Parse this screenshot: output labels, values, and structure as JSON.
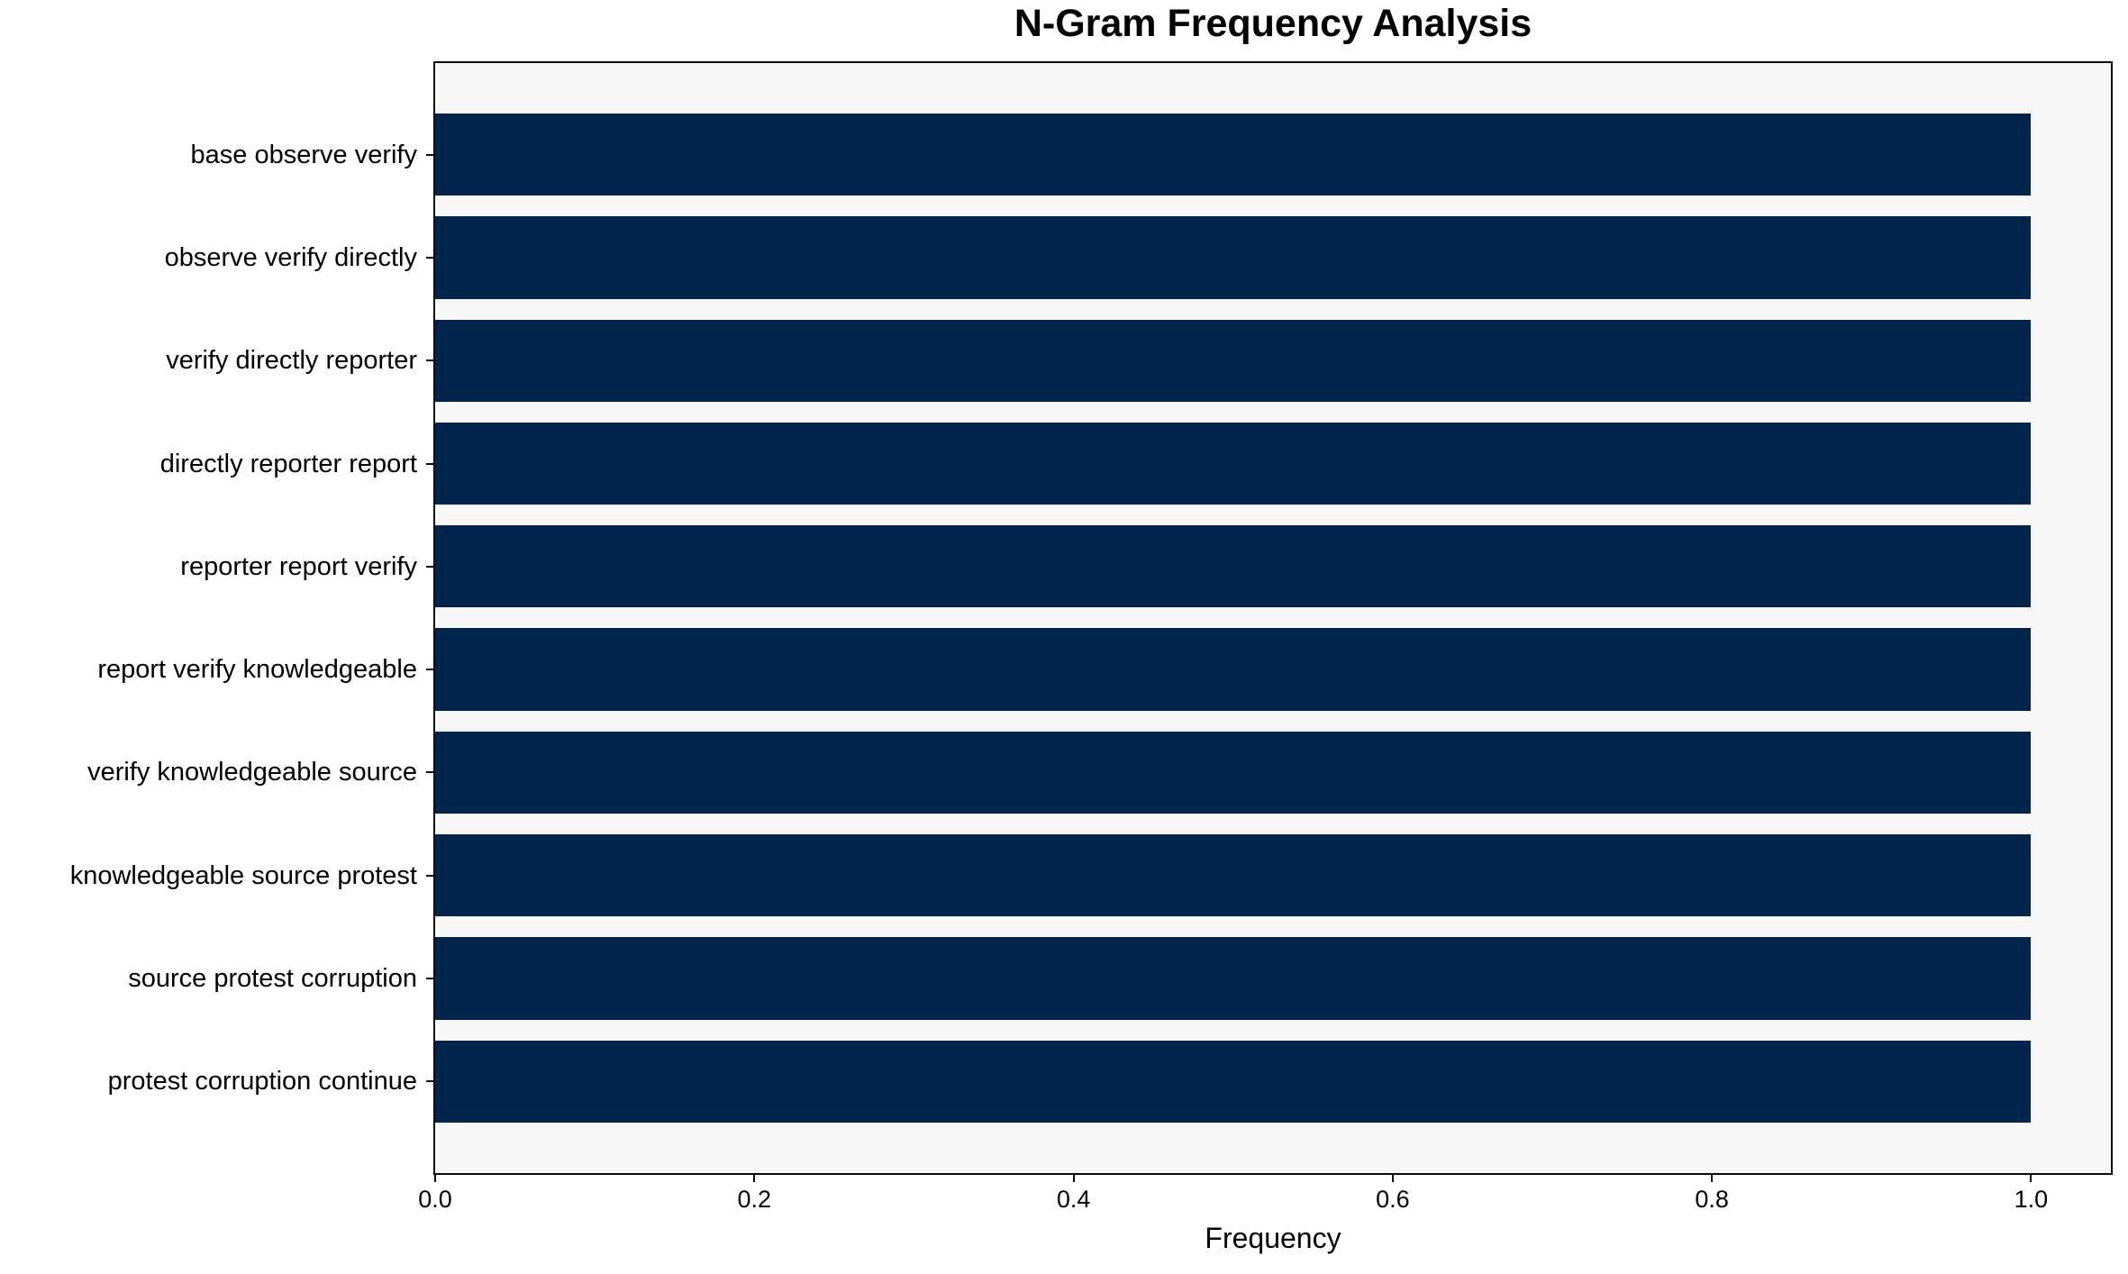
{
  "chart_data": {
    "type": "bar",
    "orientation": "horizontal",
    "title": "N-Gram Frequency Analysis",
    "xlabel": "Frequency",
    "ylabel": "",
    "categories": [
      "base observe verify",
      "observe verify directly",
      "verify directly reporter",
      "directly reporter report",
      "reporter report verify",
      "report verify knowledgeable",
      "verify knowledgeable source",
      "knowledgeable source protest",
      "source protest corruption",
      "protest corruption continue"
    ],
    "values": [
      1.0,
      1.0,
      1.0,
      1.0,
      1.0,
      1.0,
      1.0,
      1.0,
      1.0,
      1.0
    ],
    "xlim": [
      0,
      1.05
    ],
    "xticks": {
      "values": [
        0.0,
        0.2,
        0.4,
        0.6,
        0.8,
        1.0
      ],
      "labels": [
        "0.0",
        "0.2",
        "0.4",
        "0.6",
        "0.8",
        "1.0"
      ]
    },
    "grid": false,
    "bar_color": "#02254d",
    "plot_background": "#f7f7f7",
    "figure_background": "#ffffff",
    "text_color": "#000000"
  }
}
